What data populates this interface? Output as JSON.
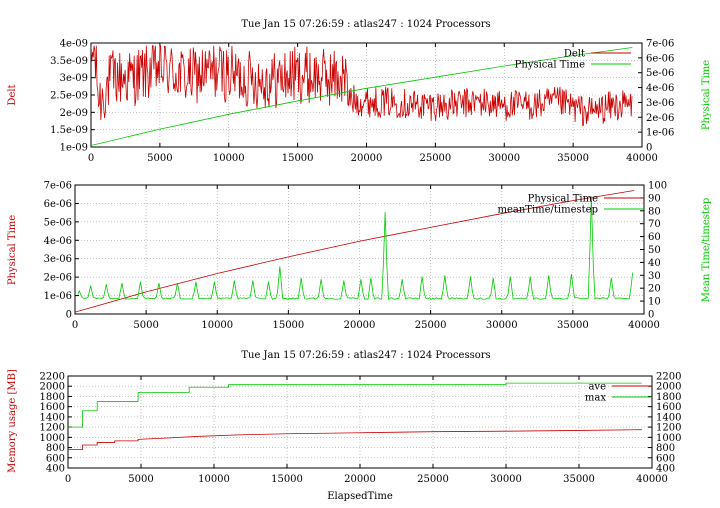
{
  "colors": {
    "series_a": "#cc0000",
    "series_b": "#00cc00",
    "grid": "#a0a0a0",
    "axis": "#000000"
  },
  "chart_data": [
    {
      "type": "line",
      "title": "Tue Jan 15 07:26:59 : atlas247 : 1024 Processors",
      "ylabel_left": "Delt",
      "ylabel_right": "Physical Time",
      "xlabel": "",
      "xlim": [
        0,
        40000
      ],
      "ylim_left": [
        1e-09,
        4e-09
      ],
      "ylim_right": [
        0,
        7e-06
      ],
      "x_ticks": [
        "0",
        "5000",
        "10000",
        "15000",
        "20000",
        "25000",
        "30000",
        "35000",
        "40000"
      ],
      "y_left_ticks": [
        "1e-09",
        "1.5e-09",
        "2e-09",
        "2.5e-09",
        "3e-09",
        "3.5e-09",
        "4e-09"
      ],
      "y_right_ticks": [
        "0",
        "1e-06",
        "2e-06",
        "3e-06",
        "4e-06",
        "5e-06",
        "6e-06",
        "7e-06"
      ],
      "grid": true,
      "legend_position": "top-right",
      "series": [
        {
          "name": "Delt",
          "axis": "left",
          "color": "#cc0000",
          "x": [
            0,
            200,
            600,
            1500,
            3000,
            5000,
            7000,
            9000,
            11000,
            13000,
            15000,
            17000,
            18500,
            18600,
            20000,
            22000,
            24000,
            26000,
            28000,
            30000,
            32000,
            34000,
            36000,
            38000,
            39300
          ],
          "y": [
            3.3e-09,
            3.9e-09,
            2.3e-09,
            3e-09,
            3e-09,
            3.3e-09,
            3e-09,
            3.2e-09,
            3e-09,
            2.9e-09,
            3.1e-09,
            3e-09,
            3e-09,
            2.4e-09,
            2.3e-09,
            2.3e-09,
            2.2e-09,
            2.2e-09,
            2.3e-09,
            2.2e-09,
            2.2e-09,
            2.3e-09,
            2e-09,
            2.2e-09,
            2.2e-09
          ]
        },
        {
          "name": "Physical Time",
          "axis": "right",
          "color": "#00cc00",
          "x": [
            0,
            5000,
            10000,
            15000,
            20000,
            25000,
            30000,
            35000,
            39300
          ],
          "y": [
            1e-07,
            1.2e-06,
            2.2e-06,
            3.1e-06,
            3.95e-06,
            4.7e-06,
            5.45e-06,
            6.15e-06,
            6.7e-06
          ]
        }
      ]
    },
    {
      "type": "line",
      "title": "",
      "ylabel_left": "Physical Time",
      "ylabel_right": "Mean Time/timestep",
      "xlabel": "",
      "xlim": [
        0,
        40000
      ],
      "ylim_left": [
        0,
        7e-06
      ],
      "ylim_right": [
        0,
        100
      ],
      "x_ticks": [
        "0",
        "5000",
        "10000",
        "15000",
        "20000",
        "25000",
        "30000",
        "35000",
        "40000"
      ],
      "y_left_ticks": [
        "0",
        "1e-06",
        "2e-06",
        "3e-06",
        "4e-06",
        "5e-06",
        "6e-06",
        "7e-06"
      ],
      "y_right_ticks": [
        "0",
        "10",
        "20",
        "30",
        "40",
        "50",
        "60",
        "70",
        "80",
        "90",
        "100"
      ],
      "grid": true,
      "legend_position": "top-right",
      "series": [
        {
          "name": "Physical Time",
          "axis": "left",
          "color": "#cc0000",
          "x": [
            0,
            5000,
            10000,
            15000,
            20000,
            25000,
            30000,
            35000,
            39300
          ],
          "y": [
            1e-07,
            1.2e-06,
            2.2e-06,
            3.1e-06,
            3.95e-06,
            4.7e-06,
            5.45e-06,
            6.15e-06,
            6.7e-06
          ]
        },
        {
          "name": "meanTime/timestep",
          "axis": "right",
          "color": "#00cc00",
          "baseline": 12,
          "spikes": [
            {
              "x": 300,
              "y": 18
            },
            {
              "x": 1100,
              "y": 22
            },
            {
              "x": 2200,
              "y": 23
            },
            {
              "x": 3300,
              "y": 24
            },
            {
              "x": 4600,
              "y": 25
            },
            {
              "x": 5900,
              "y": 24
            },
            {
              "x": 7200,
              "y": 24
            },
            {
              "x": 8500,
              "y": 25
            },
            {
              "x": 9800,
              "y": 25
            },
            {
              "x": 11200,
              "y": 26
            },
            {
              "x": 12500,
              "y": 26
            },
            {
              "x": 13600,
              "y": 25
            },
            {
              "x": 14400,
              "y": 37
            },
            {
              "x": 15900,
              "y": 28
            },
            {
              "x": 17300,
              "y": 27
            },
            {
              "x": 18900,
              "y": 26
            },
            {
              "x": 20100,
              "y": 27
            },
            {
              "x": 20800,
              "y": 28
            },
            {
              "x": 21800,
              "y": 79
            },
            {
              "x": 23000,
              "y": 27
            },
            {
              "x": 24400,
              "y": 29
            },
            {
              "x": 26000,
              "y": 30
            },
            {
              "x": 27800,
              "y": 29
            },
            {
              "x": 29400,
              "y": 28
            },
            {
              "x": 30600,
              "y": 29
            },
            {
              "x": 32000,
              "y": 29
            },
            {
              "x": 33300,
              "y": 30
            },
            {
              "x": 34900,
              "y": 31
            },
            {
              "x": 36300,
              "y": 91
            },
            {
              "x": 37700,
              "y": 28
            },
            {
              "x": 39200,
              "y": 32
            }
          ]
        }
      ]
    },
    {
      "type": "line",
      "title": "Tue Jan 15 07:26:59 : atlas247 : 1024 Processors",
      "ylabel_left": "Memory usage [MB]",
      "ylabel_right": "",
      "xlabel": "ElapsedTime",
      "xlim": [
        0,
        40000
      ],
      "ylim_left": [
        400,
        2200
      ],
      "ylim_right": [
        400,
        2200
      ],
      "x_ticks": [
        "0",
        "5000",
        "10000",
        "15000",
        "20000",
        "25000",
        "30000",
        "35000",
        "40000"
      ],
      "y_left_ticks": [
        "400",
        "600",
        "800",
        "1000",
        "1200",
        "1400",
        "1600",
        "1800",
        "2000",
        "2200"
      ],
      "y_right_ticks": [
        "400",
        "600",
        "800",
        "1000",
        "1200",
        "1400",
        "1600",
        "1800",
        "2000",
        "2200"
      ],
      "grid": true,
      "legend_position": "top-right",
      "series": [
        {
          "name": "ave",
          "axis": "left",
          "color": "#cc0000",
          "x": [
            0,
            1000,
            1000,
            2000,
            2000,
            3200,
            3200,
            4800,
            4800,
            7000,
            9000,
            12000,
            15000,
            20000,
            25000,
            30000,
            35000,
            39300
          ],
          "y": [
            760,
            760,
            850,
            850,
            900,
            900,
            930,
            930,
            960,
            990,
            1020,
            1050,
            1070,
            1090,
            1110,
            1120,
            1135,
            1150
          ]
        },
        {
          "name": "max",
          "axis": "left",
          "color": "#00cc00",
          "x": [
            0,
            1000,
            1000,
            2000,
            2000,
            4800,
            4800,
            8300,
            8300,
            11000,
            11000,
            30000,
            30000,
            39300
          ],
          "y": [
            1200,
            1200,
            1520,
            1520,
            1700,
            1700,
            1880,
            1880,
            1980,
            1980,
            2030,
            2030,
            2060,
            2060
          ]
        }
      ]
    }
  ]
}
